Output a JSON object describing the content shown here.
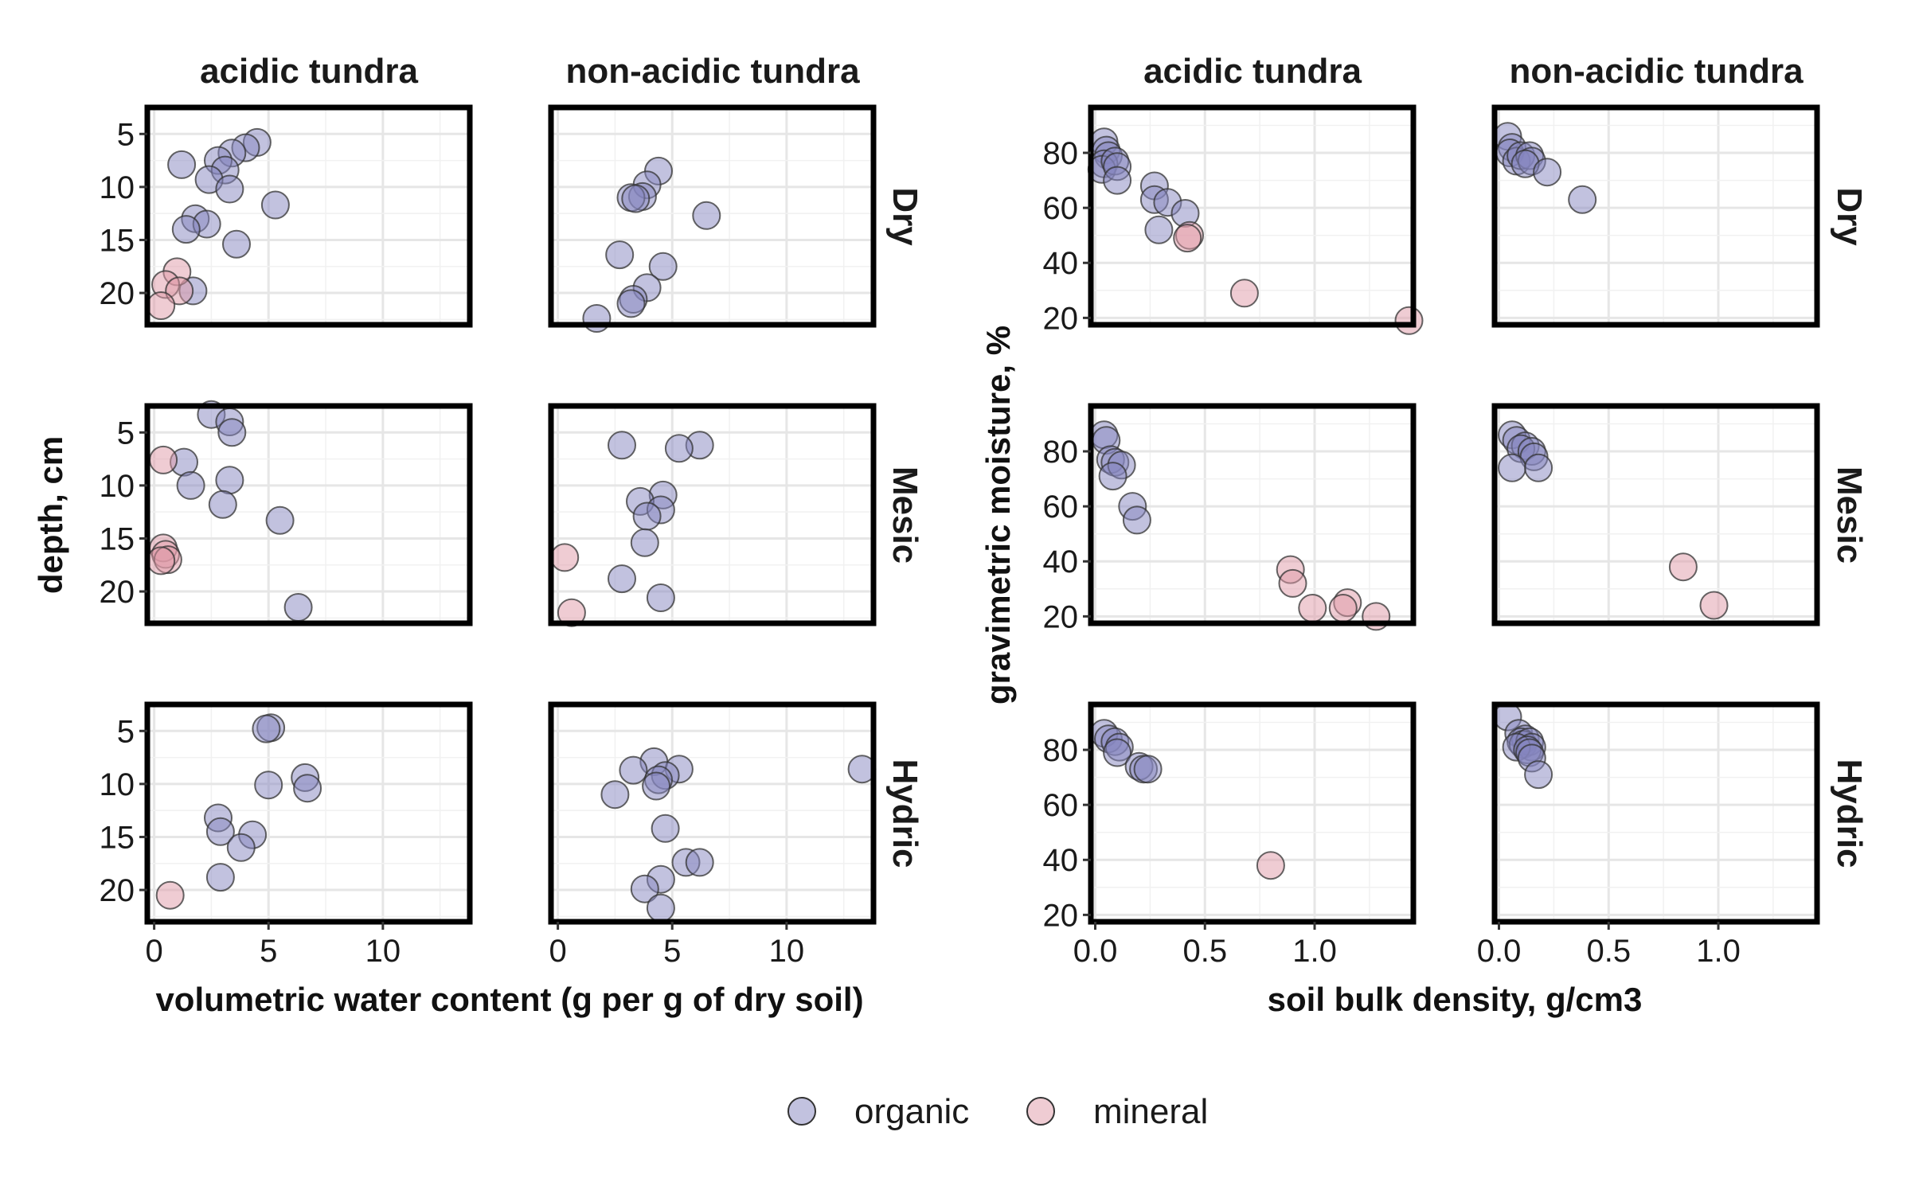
{
  "colors": {
    "organic": "#8585bf",
    "mineral": "#e09aa8",
    "point_stroke": "#333333"
  },
  "legend": {
    "position": "bottom",
    "items": [
      "organic",
      "mineral"
    ]
  },
  "chart_data": [
    {
      "type": "scatter",
      "title": "",
      "xlabel": "volumetric water content (g per g of dry soil)",
      "ylabel": "depth, cm",
      "columns": [
        "acidic tundra",
        "non-acidic tundra"
      ],
      "rows": [
        "Dry",
        "Mesic",
        "Hydric"
      ],
      "xlim": [
        -0.3,
        13.8
      ],
      "ylim": [
        2.5,
        23.0
      ],
      "y_reversed": true,
      "xticks": [
        0,
        5,
        10
      ],
      "yticks": [
        5,
        10,
        15,
        20
      ],
      "grid": true,
      "panels": [
        {
          "row": "Dry",
          "col": "acidic tundra",
          "organic": [
            [
              4.5,
              5.8
            ],
            [
              4.0,
              6.3
            ],
            [
              3.4,
              6.8
            ],
            [
              2.8,
              7.5
            ],
            [
              3.1,
              8.4
            ],
            [
              1.2,
              7.9
            ],
            [
              2.4,
              9.3
            ],
            [
              3.3,
              10.2
            ],
            [
              5.3,
              11.7
            ],
            [
              1.8,
              13.0
            ],
            [
              2.3,
              13.5
            ],
            [
              1.4,
              14.0
            ],
            [
              3.6,
              15.4
            ],
            [
              1.7,
              19.8
            ]
          ],
          "mineral": [
            [
              1.0,
              18.0
            ],
            [
              0.5,
              19.2
            ],
            [
              1.1,
              19.8
            ],
            [
              0.3,
              21.2
            ]
          ]
        },
        {
          "row": "Dry",
          "col": "non-acidic tundra",
          "organic": [
            [
              4.4,
              8.5
            ],
            [
              3.9,
              9.8
            ],
            [
              3.7,
              10.9
            ],
            [
              3.2,
              11.0
            ],
            [
              3.4,
              11.1
            ],
            [
              6.5,
              12.7
            ],
            [
              2.7,
              16.4
            ],
            [
              4.6,
              17.5
            ],
            [
              3.9,
              19.5
            ],
            [
              3.3,
              20.6
            ],
            [
              3.2,
              21.0
            ],
            [
              1.7,
              22.4
            ]
          ],
          "mineral": []
        },
        {
          "row": "Mesic",
          "col": "acidic tundra",
          "organic": [
            [
              2.5,
              3.3
            ],
            [
              3.3,
              4.0
            ],
            [
              3.4,
              5.0
            ],
            [
              1.3,
              7.8
            ],
            [
              3.3,
              9.5
            ],
            [
              1.6,
              10.0
            ],
            [
              3.0,
              11.8
            ],
            [
              5.5,
              13.3
            ],
            [
              6.3,
              21.5
            ]
          ],
          "mineral": [
            [
              0.4,
              7.6
            ],
            [
              0.4,
              15.9
            ],
            [
              0.5,
              16.5
            ],
            [
              0.6,
              17.0
            ],
            [
              0.3,
              17.1
            ]
          ]
        },
        {
          "row": "Mesic",
          "col": "non-acidic tundra",
          "organic": [
            [
              2.8,
              6.2
            ],
            [
              6.2,
              6.2
            ],
            [
              5.3,
              6.5
            ],
            [
              4.6,
              10.9
            ],
            [
              3.6,
              11.5
            ],
            [
              4.5,
              12.3
            ],
            [
              3.9,
              12.9
            ],
            [
              3.8,
              15.4
            ],
            [
              2.8,
              18.8
            ],
            [
              4.5,
              20.6
            ]
          ],
          "mineral": [
            [
              0.3,
              16.8
            ],
            [
              0.6,
              22.0
            ]
          ]
        },
        {
          "row": "Hydric",
          "col": "acidic tundra",
          "organic": [
            [
              5.1,
              4.7
            ],
            [
              4.9,
              4.8
            ],
            [
              6.6,
              9.4
            ],
            [
              6.7,
              10.4
            ],
            [
              5.0,
              10.1
            ],
            [
              2.8,
              13.2
            ],
            [
              2.9,
              14.5
            ],
            [
              4.3,
              14.8
            ],
            [
              3.8,
              16.0
            ],
            [
              2.9,
              18.8
            ]
          ],
          "mineral": [
            [
              0.7,
              20.5
            ]
          ]
        },
        {
          "row": "Hydric",
          "col": "non-acidic tundra",
          "organic": [
            [
              4.2,
              7.9
            ],
            [
              3.3,
              8.7
            ],
            [
              5.3,
              8.6
            ],
            [
              13.3,
              8.6
            ],
            [
              4.7,
              9.2
            ],
            [
              4.4,
              9.6
            ],
            [
              4.3,
              10.2
            ],
            [
              2.5,
              11.0
            ],
            [
              4.7,
              14.2
            ],
            [
              5.6,
              17.4
            ],
            [
              6.2,
              17.4
            ],
            [
              4.5,
              19.0
            ],
            [
              3.8,
              19.9
            ],
            [
              4.5,
              21.7
            ]
          ],
          "mineral": []
        }
      ]
    },
    {
      "type": "scatter",
      "title": "",
      "xlabel": "soil bulk density, g/cm3",
      "ylabel": "gravimetric moisture, %",
      "columns": [
        "acidic tundra",
        "non-acidic tundra"
      ],
      "rows": [
        "Dry",
        "Mesic",
        "Hydric"
      ],
      "xlim": [
        -0.02,
        1.45
      ],
      "ylim": [
        17.5,
        96.5
      ],
      "y_reversed": false,
      "xticks": [
        0.0,
        0.5,
        1.0
      ],
      "xtick_labels": [
        "0.0",
        "0.5",
        "1.0"
      ],
      "yticks": [
        20,
        40,
        60,
        80
      ],
      "grid": true,
      "panels": [
        {
          "row": "Dry",
          "col": "acidic tundra",
          "organic": [
            [
              0.04,
              84
            ],
            [
              0.05,
              81
            ],
            [
              0.06,
              79
            ],
            [
              0.04,
              76
            ],
            [
              0.03,
              74
            ],
            [
              0.09,
              77
            ],
            [
              0.1,
              75
            ],
            [
              0.1,
              70
            ],
            [
              0.27,
              68
            ],
            [
              0.27,
              63
            ],
            [
              0.33,
              62
            ],
            [
              0.41,
              58
            ],
            [
              0.29,
              52
            ]
          ],
          "mineral": [
            [
              0.43,
              50
            ],
            [
              0.42,
              49
            ],
            [
              0.68,
              29
            ],
            [
              1.43,
              19
            ]
          ]
        },
        {
          "row": "Dry",
          "col": "non-acidic tundra",
          "organic": [
            [
              0.04,
              86
            ],
            [
              0.06,
              82
            ],
            [
              0.05,
              80
            ],
            [
              0.08,
              77
            ],
            [
              0.1,
              79
            ],
            [
              0.14,
              79
            ],
            [
              0.15,
              77
            ],
            [
              0.12,
              76
            ],
            [
              0.22,
              73
            ],
            [
              0.38,
              63
            ]
          ],
          "mineral": []
        },
        {
          "row": "Mesic",
          "col": "acidic tundra",
          "organic": [
            [
              0.04,
              86
            ],
            [
              0.05,
              84
            ],
            [
              0.07,
              77
            ],
            [
              0.09,
              76
            ],
            [
              0.12,
              75
            ],
            [
              0.08,
              71
            ],
            [
              0.17,
              60
            ],
            [
              0.19,
              55
            ]
          ],
          "mineral": [
            [
              0.89,
              37
            ],
            [
              0.9,
              32
            ],
            [
              1.15,
              25
            ],
            [
              1.13,
              23
            ],
            [
              0.99,
              23
            ],
            [
              1.28,
              20
            ]
          ]
        },
        {
          "row": "Mesic",
          "col": "non-acidic tundra",
          "organic": [
            [
              0.06,
              86
            ],
            [
              0.08,
              84
            ],
            [
              0.12,
              82
            ],
            [
              0.1,
              81
            ],
            [
              0.15,
              80
            ],
            [
              0.16,
              78
            ],
            [
              0.06,
              74
            ],
            [
              0.18,
              74
            ]
          ],
          "mineral": [
            [
              0.84,
              38
            ],
            [
              0.98,
              24
            ]
          ]
        },
        {
          "row": "Hydric",
          "col": "acidic tundra",
          "organic": [
            [
              0.04,
              86
            ],
            [
              0.06,
              84
            ],
            [
              0.09,
              83
            ],
            [
              0.11,
              81
            ],
            [
              0.1,
              79
            ],
            [
              0.2,
              74
            ],
            [
              0.22,
              73
            ],
            [
              0.24,
              73
            ]
          ],
          "mineral": [
            [
              0.8,
              38
            ]
          ]
        },
        {
          "row": "Hydric",
          "col": "non-acidic tundra",
          "organic": [
            [
              0.04,
              92
            ],
            [
              0.09,
              86
            ],
            [
              0.12,
              84
            ],
            [
              0.1,
              83
            ],
            [
              0.11,
              82
            ],
            [
              0.14,
              83
            ],
            [
              0.15,
              81
            ],
            [
              0.08,
              81
            ],
            [
              0.13,
              80
            ],
            [
              0.14,
              79
            ],
            [
              0.15,
              77
            ],
            [
              0.18,
              71
            ]
          ],
          "mineral": []
        }
      ]
    }
  ]
}
